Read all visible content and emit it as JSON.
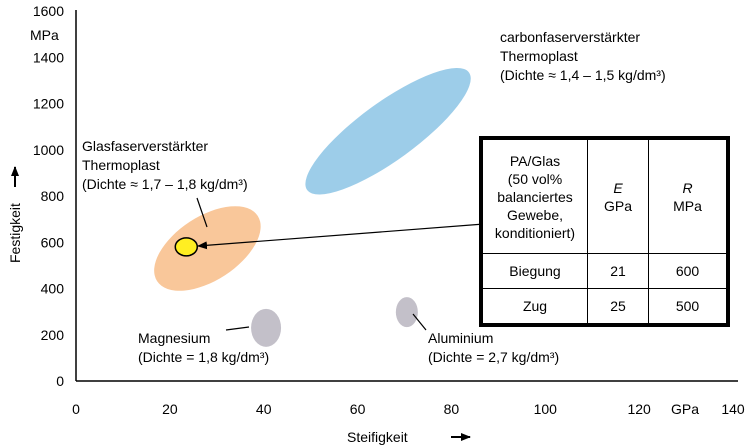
{
  "chart_data": {
    "type": "scatter",
    "title": "",
    "xlabel": "Steifigkeit",
    "xunit": "GPa",
    "ylabel": "Festigkeit",
    "yunit": "MPa",
    "xlim": [
      0,
      140
    ],
    "ylim": [
      0,
      1600
    ],
    "xticks": [
      "0",
      "20",
      "40",
      "60",
      "80",
      "100",
      "120",
      "140"
    ],
    "yticks": [
      "0",
      "200",
      "400",
      "600",
      "800",
      "1000",
      "1200",
      "1400",
      "1600"
    ],
    "grid": false,
    "regions": [
      {
        "label_lines": [
          "carbonfaserverstärkter",
          "Thermoplast",
          "(Dichte ≈ 1,4 – 1,5 kg/dm³)"
        ],
        "center": [
          66.5,
          1080
        ],
        "color": "#9dcde9"
      },
      {
        "label_lines": [
          "Glasfaserverstärkter",
          "Thermoplast",
          "(Dichte ≈ 1,7 – 1,8 kg/dm³)"
        ],
        "center": [
          28,
          573
        ],
        "color": "#f9c79a"
      },
      {
        "label_lines": [
          "Magnesium",
          "(Dichte = 1,8 kg/dm³)"
        ],
        "center": [
          40.5,
          230
        ],
        "color": "#c3c0c9"
      },
      {
        "label_lines": [
          "Aluminium",
          "(Dichte = 2,7 kg/dm³)"
        ],
        "center": [
          70.5,
          298
        ],
        "color": "#c3c0c9"
      }
    ],
    "highlight_point": {
      "x": 23.5,
      "y": 580,
      "color": "#ffee22"
    }
  },
  "table": {
    "header": {
      "label_lines": [
        "PA/Glas",
        "(50 vol%",
        "balanciertes",
        "Gewebe,",
        "konditioniert)"
      ],
      "col_e": "E",
      "col_e_unit": "GPa",
      "col_r": "R",
      "col_r_unit": "MPa"
    },
    "rows": [
      {
        "label": "Biegung",
        "e": "21",
        "r": "600"
      },
      {
        "label": "Zug",
        "e": "25",
        "r": "500"
      }
    ]
  }
}
